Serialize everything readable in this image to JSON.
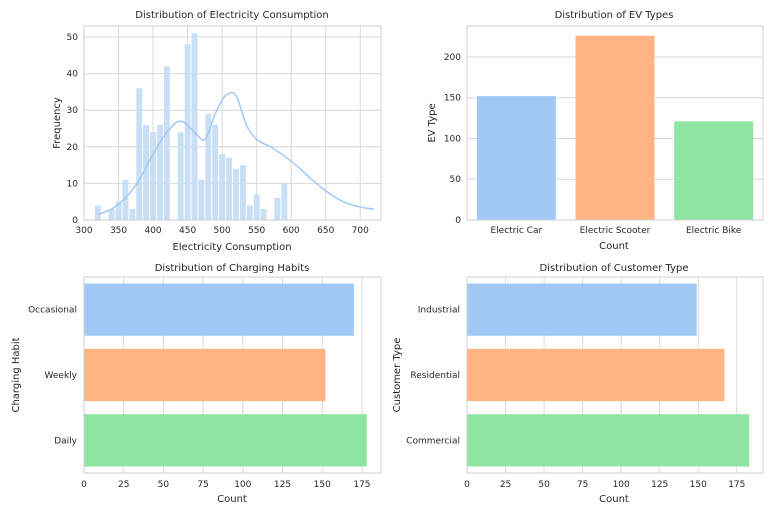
{
  "chart_data": [
    {
      "type": "histogram",
      "title": "Distribution of Electricity Consumption",
      "xlabel": "Electricity Consumption",
      "ylabel": "Frequency",
      "xlim": [
        300,
        730
      ],
      "ylim": [
        0,
        53
      ],
      "xticks": [
        300,
        350,
        400,
        450,
        500,
        550,
        600,
        650,
        700
      ],
      "yticks": [
        0,
        10,
        20,
        30,
        40,
        50
      ],
      "bin_start": 315,
      "bin_width": 10,
      "counts": [
        4,
        0,
        3,
        5,
        11,
        3,
        36,
        26,
        24,
        26,
        42,
        0,
        24,
        48,
        51,
        11,
        29,
        26,
        18,
        17,
        14,
        15,
        4,
        7,
        3,
        0,
        6,
        10
      ],
      "kde": {
        "x": [
          320,
          340,
          360,
          380,
          400,
          420,
          440,
          460,
          475,
          490,
          505,
          520,
          535,
          550,
          570,
          590,
          610,
          630,
          650,
          670,
          690,
          710,
          720
        ],
        "y": [
          1.5,
          3,
          6,
          11,
          18,
          24,
          27,
          24,
          22,
          29,
          34,
          34,
          26,
          22,
          20,
          17.5,
          14.5,
          11,
          8,
          5.5,
          4,
          3.2,
          3
        ]
      },
      "color": "#a1c9f4",
      "grid": true
    },
    {
      "type": "bar",
      "title": "Distribution of EV Types",
      "xlabel": "Count",
      "ylabel": "EV Type",
      "categories": [
        "Electric Car",
        "Electric Scooter",
        "Electric Bike"
      ],
      "values": [
        152,
        226,
        121
      ],
      "ylim": [
        0,
        238
      ],
      "yticks": [
        0,
        50,
        100,
        150,
        200
      ],
      "colors": [
        "#a1c9f4",
        "#ffb482",
        "#8de5a1"
      ],
      "grid": true
    },
    {
      "type": "barh",
      "title": "Distribution of Charging Habits",
      "xlabel": "Count",
      "ylabel": "Charging Habit",
      "categories": [
        "Occasional",
        "Weekly",
        "Daily"
      ],
      "values": [
        170,
        152,
        178
      ],
      "xlim": [
        0,
        187
      ],
      "xticks": [
        0,
        25,
        50,
        75,
        100,
        125,
        150,
        175
      ],
      "colors": [
        "#a1c9f4",
        "#ffb482",
        "#8de5a1"
      ],
      "grid": true
    },
    {
      "type": "barh",
      "title": "Distribution of Customer Type",
      "xlabel": "Count",
      "ylabel": "Customer Type",
      "categories": [
        "Industrial",
        "Residential",
        "Commercial"
      ],
      "values": [
        149,
        167,
        183
      ],
      "xlim": [
        0,
        192
      ],
      "xticks": [
        0,
        25,
        50,
        75,
        100,
        125,
        150,
        175
      ],
      "colors": [
        "#a1c9f4",
        "#ffb482",
        "#8de5a1"
      ],
      "grid": true
    }
  ]
}
